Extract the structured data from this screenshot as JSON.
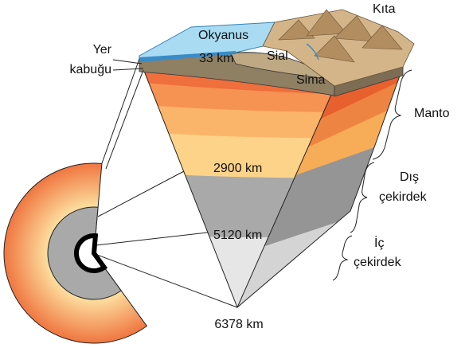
{
  "labels": {
    "continent": "Kıta",
    "ocean": "Okyanus",
    "crust": [
      "Yer",
      "kabuğu"
    ],
    "crust_depth": "33 km",
    "sial": "Sial",
    "sima": "Sima",
    "mantle": "Manto",
    "mantle_depth": "2900 km",
    "outer_core": [
      "Dış",
      "çekirdek"
    ],
    "outer_core_depth": "5120 km",
    "inner_core": [
      "İç",
      "çekirdek"
    ],
    "center_depth": "6378 km"
  }
}
